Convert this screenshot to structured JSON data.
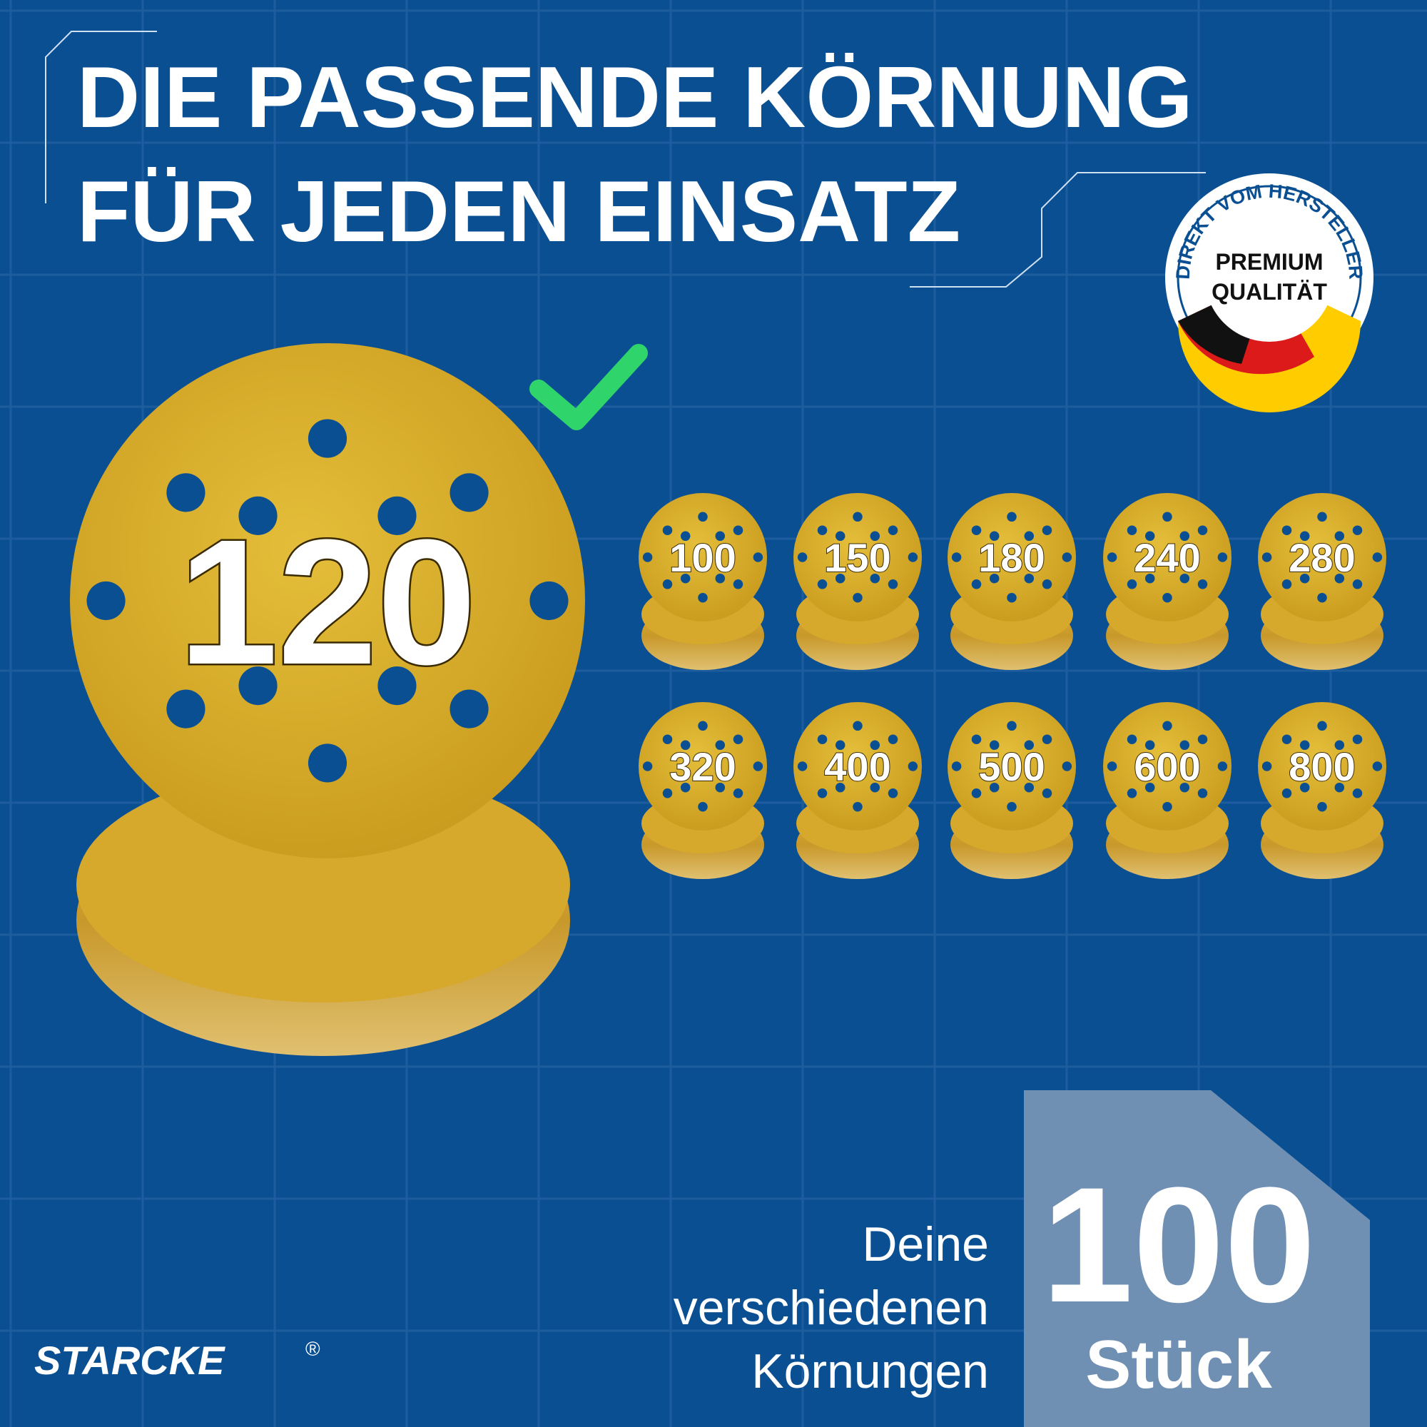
{
  "header": {
    "title_lines": [
      "DIE PASSENDE KÖRNUNG",
      "FÜR JEDEN EINSATZ"
    ]
  },
  "badge": {
    "ring_text": "DIREKT VOM HERSTELLER",
    "lines": [
      "PREMIUM",
      "QUALITÄT"
    ]
  },
  "featured": {
    "grit": "120"
  },
  "grits": [
    "100",
    "150",
    "180",
    "240",
    "280",
    "320",
    "400",
    "500",
    "600",
    "800"
  ],
  "footer": {
    "text_lines": [
      "Deine",
      "verschiedenen",
      "Körnungen"
    ],
    "count": "100",
    "unit": "Stück",
    "brand": "STARCKE",
    "brand_mark": "®"
  }
}
